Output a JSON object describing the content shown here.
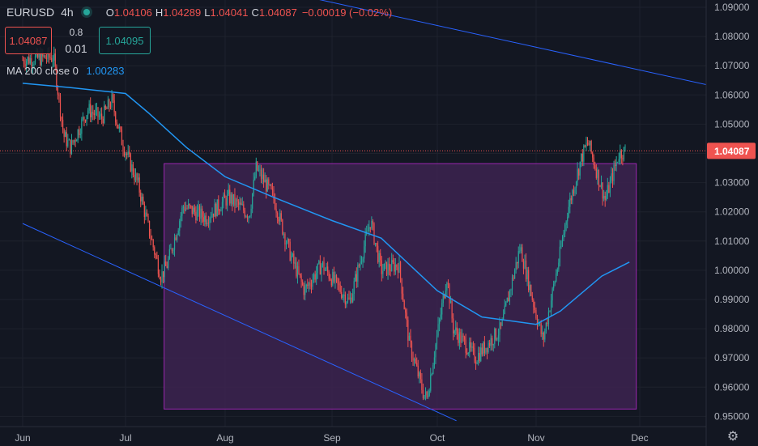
{
  "header": {
    "symbol": "EURUSD",
    "timeframe": "4h",
    "open_label": "O",
    "open": "1.04106",
    "high_label": "H",
    "high": "1.04289",
    "low_label": "L",
    "low": "1.04041",
    "close_label": "C",
    "close": "1.04087",
    "change": "−0.00019 (−0.02%)"
  },
  "trade": {
    "sell_price": "1.04087",
    "buy_price": "1.04095",
    "spread_top": "0.8",
    "quantity": "0.01"
  },
  "indicator": {
    "label": "MA 200 close 0",
    "value": "1.00283"
  },
  "colors": {
    "background": "#131722",
    "up": "#26a69a",
    "down": "#ef5350",
    "ma": "#2196f3",
    "box_fill": "#3d2350",
    "box_border": "#9c27b0",
    "trendline": "#2962ff"
  },
  "chart_data": {
    "type": "candlestick",
    "y_ticks": [
      "1.09000",
      "1.08000",
      "1.07000",
      "1.06000",
      "1.05000",
      "1.04000",
      "1.03000",
      "1.02000",
      "1.01000",
      "1.00000",
      "0.99000",
      "0.98000",
      "0.97000",
      "0.96000",
      "0.95000"
    ],
    "ylim": [
      0.9465,
      1.0925
    ],
    "x_ticks": [
      "Jun",
      "Jul",
      "Aug",
      "Sep",
      "Oct",
      "Nov",
      "Dec"
    ],
    "last_price_label": "1.04087",
    "price_path": [
      [
        "Jun 1",
        1.072
      ],
      [
        "Jun 10",
        1.073
      ],
      [
        "Jun 13",
        1.046
      ],
      [
        "Jun 15",
        1.042
      ],
      [
        "Jun 20",
        1.055
      ],
      [
        "Jun 24",
        1.052
      ],
      [
        "Jun 27",
        1.058
      ],
      [
        "Jun 30",
        1.044
      ],
      [
        "Jul 5",
        1.029
      ],
      [
        "Jul 8",
        1.015
      ],
      [
        "Jul 12",
        0.998
      ],
      [
        "Jul 14",
        1.002
      ],
      [
        "Jul 19",
        1.022
      ],
      [
        "Jul 26",
        1.018
      ],
      [
        "Aug 2",
        1.025
      ],
      [
        "Aug 8",
        1.019
      ],
      [
        "Aug 10",
        1.035
      ],
      [
        "Aug 15",
        1.025
      ],
      [
        "Aug 20",
        1.005
      ],
      [
        "Aug 24",
        0.993
      ],
      [
        "Aug 29",
        1.002
      ],
      [
        "Sep 6",
        0.989
      ],
      [
        "Sep 12",
        1.017
      ],
      [
        "Sep 15",
        1.0
      ],
      [
        "Sep 20",
        1.002
      ],
      [
        "Sep 23",
        0.975
      ],
      [
        "Sep 27",
        0.958
      ],
      [
        "Sep 28",
        0.956
      ],
      [
        "Oct 4",
        0.998
      ],
      [
        "Oct 6",
        0.98
      ],
      [
        "Oct 13",
        0.97
      ],
      [
        "Oct 21",
        0.98
      ],
      [
        "Oct 27",
        1.008
      ],
      [
        "Nov 1",
        0.985
      ],
      [
        "Nov 3",
        0.976
      ],
      [
        "Nov 8",
        1.006
      ],
      [
        "Nov 10",
        1.02
      ],
      [
        "Nov 14",
        1.038
      ],
      [
        "Nov 16",
        1.044
      ],
      [
        "Nov 21",
        1.024
      ],
      [
        "Nov 25",
        1.04
      ],
      [
        "Nov 27",
        1.0409
      ]
    ],
    "ma_path": [
      [
        "Jun 1",
        1.064
      ],
      [
        "Jun 15",
        1.0625
      ],
      [
        "Jul 1",
        1.0605
      ],
      [
        "Jul 8",
        1.054
      ],
      [
        "Jul 20",
        1.042
      ],
      [
        "Aug 1",
        1.032
      ],
      [
        "Aug 15",
        1.025
      ],
      [
        "Sep 1",
        1.017
      ],
      [
        "Sep 15",
        1.011
      ],
      [
        "Oct 1",
        0.993
      ],
      [
        "Oct 15",
        0.984
      ],
      [
        "Nov 1",
        0.9815
      ],
      [
        "Nov 8",
        0.986
      ],
      [
        "Nov 20",
        0.998
      ],
      [
        "Nov 28",
        1.0028
      ]
    ],
    "box": {
      "x": [
        "Jul 13",
        "Nov 30"
      ],
      "y": [
        0.9525,
        1.0365
      ]
    },
    "trendlines": [
      {
        "from": [
          "Jun 1",
          1.016
        ],
        "to": [
          "Oct 7",
          0.9485
        ]
      },
      {
        "from": [
          "Aug 25",
          1.0935
        ],
        "to": [
          "Dec 30",
          1.061
        ]
      }
    ],
    "last_price": 1.04087
  }
}
